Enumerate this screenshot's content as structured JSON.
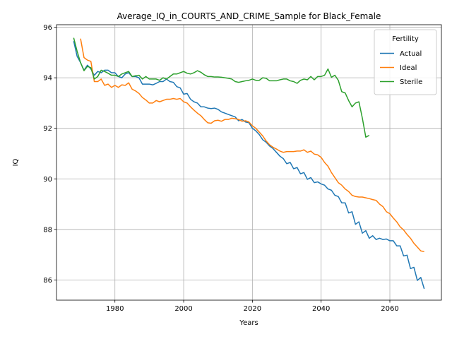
{
  "chart_data": {
    "type": "line",
    "title": "Average_IQ_in_COURTS_AND_CRIME_Sample for Black_Female",
    "xlabel": "Years",
    "ylabel": "IQ",
    "xlim": [
      1963,
      2075
    ],
    "ylim": [
      85.2,
      96.1
    ],
    "xticks": [
      1980,
      2000,
      2020,
      2040,
      2060
    ],
    "yticks": [
      86,
      88,
      90,
      92,
      94,
      96
    ],
    "grid": true,
    "legend": {
      "title": "Fertility",
      "position": "top-right"
    },
    "series": [
      {
        "name": "Actual",
        "color": "#1f77b4",
        "x": [
          1968,
          1969,
          1970,
          1971,
          1972,
          1973,
          1974,
          1975,
          1976,
          1977,
          1978,
          1979,
          1980,
          1981,
          1982,
          1983,
          1984,
          1985,
          1986,
          1987,
          1988,
          1989,
          1990,
          1991,
          1992,
          1993,
          1994,
          1995,
          1996,
          1997,
          1998,
          1999,
          2000,
          2001,
          2002,
          2003,
          2004,
          2005,
          2006,
          2007,
          2008,
          2009,
          2010,
          2011,
          2012,
          2013,
          2014,
          2015,
          2016,
          2017,
          2018,
          2019,
          2020,
          2021,
          2022,
          2023,
          2024,
          2025,
          2026,
          2027,
          2028,
          2029,
          2030,
          2031,
          2032,
          2033,
          2034,
          2035,
          2036,
          2037,
          2038,
          2039,
          2040,
          2041,
          2042,
          2043,
          2044,
          2045,
          2046,
          2047,
          2048,
          2049,
          2050,
          2051,
          2052,
          2053,
          2054,
          2055,
          2056,
          2057,
          2058,
          2059,
          2060,
          2061,
          2062,
          2063,
          2064,
          2065,
          2066,
          2067,
          2068,
          2069,
          2070
        ],
        "y": [
          95.45,
          94.85,
          94.6,
          94.3,
          94.5,
          94.35,
          94.1,
          94.25,
          94.2,
          94.3,
          94.3,
          94.2,
          94.2,
          94.05,
          94.0,
          94.15,
          94.2,
          94.05,
          94.05,
          94.0,
          93.75,
          93.75,
          93.75,
          93.72,
          93.78,
          93.85,
          93.85,
          93.95,
          93.85,
          93.82,
          93.65,
          93.6,
          93.35,
          93.38,
          93.15,
          93.05,
          93.0,
          92.85,
          92.85,
          92.8,
          92.78,
          92.8,
          92.75,
          92.65,
          92.6,
          92.55,
          92.5,
          92.45,
          92.3,
          92.35,
          92.25,
          92.22,
          92.0,
          91.9,
          91.75,
          91.55,
          91.45,
          91.3,
          91.2,
          91.05,
          90.9,
          90.8,
          90.6,
          90.65,
          90.4,
          90.45,
          90.2,
          90.25,
          89.98,
          90.05,
          89.85,
          89.88,
          89.8,
          89.75,
          89.6,
          89.55,
          89.35,
          89.3,
          89.05,
          89.05,
          88.65,
          88.7,
          88.2,
          88.3,
          87.85,
          87.95,
          87.65,
          87.75,
          87.6,
          87.65,
          87.6,
          87.62,
          87.55,
          87.55,
          87.35,
          87.35,
          86.95,
          86.98,
          86.45,
          86.5,
          85.98,
          86.1,
          85.65
        ]
      },
      {
        "name": "Ideal",
        "color": "#ff7f0e",
        "x": [
          1970,
          1971,
          1972,
          1973,
          1974,
          1975,
          1976,
          1977,
          1978,
          1979,
          1980,
          1981,
          1982,
          1983,
          1984,
          1985,
          1986,
          1987,
          1988,
          1989,
          1990,
          1991,
          1992,
          1993,
          1994,
          1995,
          1996,
          1997,
          1998,
          1999,
          2000,
          2001,
          2002,
          2003,
          2004,
          2005,
          2006,
          2007,
          2008,
          2009,
          2010,
          2011,
          2012,
          2013,
          2014,
          2015,
          2016,
          2017,
          2018,
          2019,
          2020,
          2021,
          2022,
          2023,
          2024,
          2025,
          2026,
          2027,
          2028,
          2029,
          2030,
          2031,
          2032,
          2033,
          2034,
          2035,
          2036,
          2037,
          2038,
          2039,
          2040,
          2041,
          2042,
          2043,
          2044,
          2045,
          2046,
          2047,
          2048,
          2049,
          2050,
          2051,
          2052,
          2053,
          2054,
          2055,
          2056,
          2057,
          2058,
          2059,
          2060,
          2061,
          2062,
          2063,
          2064,
          2065,
          2066,
          2067,
          2068,
          2069,
          2070
        ],
        "y": [
          95.55,
          94.8,
          94.7,
          94.65,
          93.85,
          93.85,
          93.95,
          93.7,
          93.75,
          93.62,
          93.7,
          93.62,
          93.72,
          93.7,
          93.8,
          93.55,
          93.48,
          93.38,
          93.22,
          93.12,
          93.0,
          93.0,
          93.1,
          93.05,
          93.1,
          93.15,
          93.15,
          93.18,
          93.15,
          93.18,
          93.05,
          93.0,
          92.85,
          92.72,
          92.6,
          92.5,
          92.35,
          92.22,
          92.2,
          92.3,
          92.32,
          92.28,
          92.35,
          92.35,
          92.4,
          92.38,
          92.35,
          92.28,
          92.3,
          92.25,
          92.1,
          92.0,
          91.85,
          91.7,
          91.5,
          91.35,
          91.25,
          91.18,
          91.1,
          91.05,
          91.08,
          91.08,
          91.08,
          91.1,
          91.1,
          91.15,
          91.05,
          91.1,
          90.98,
          90.95,
          90.85,
          90.65,
          90.5,
          90.25,
          90.05,
          89.85,
          89.75,
          89.6,
          89.5,
          89.35,
          89.3,
          89.28,
          89.28,
          89.25,
          89.22,
          89.18,
          89.15,
          89.0,
          88.9,
          88.7,
          88.62,
          88.45,
          88.3,
          88.1,
          87.98,
          87.8,
          87.65,
          87.45,
          87.3,
          87.15,
          87.12
        ]
      },
      {
        "name": "Sterile",
        "color": "#2ca02c",
        "x": [
          1968,
          1969,
          1970,
          1971,
          1972,
          1973,
          1974,
          1975,
          1976,
          1977,
          1978,
          1979,
          1980,
          1981,
          1982,
          1983,
          1984,
          1985,
          1986,
          1987,
          1988,
          1989,
          1990,
          1991,
          1992,
          1993,
          1994,
          1995,
          1996,
          1997,
          1998,
          1999,
          2000,
          2001,
          2002,
          2003,
          2004,
          2005,
          2006,
          2007,
          2008,
          2009,
          2010,
          2011,
          2012,
          2013,
          2014,
          2015,
          2016,
          2017,
          2018,
          2019,
          2020,
          2021,
          2022,
          2023,
          2024,
          2025,
          2026,
          2027,
          2028,
          2029,
          2030,
          2031,
          2032,
          2033,
          2034,
          2035,
          2036,
          2037,
          2038,
          2039,
          2040,
          2041,
          2042,
          2043,
          2044,
          2045,
          2046,
          2047,
          2048,
          2049,
          2050,
          2051,
          2052,
          2053,
          2054
        ],
        "y": [
          95.58,
          95.05,
          94.6,
          94.28,
          94.45,
          94.4,
          93.95,
          94.05,
          94.3,
          94.25,
          94.18,
          94.1,
          94.1,
          94.05,
          94.15,
          94.2,
          94.25,
          94.05,
          94.08,
          94.1,
          93.95,
          94.05,
          93.95,
          93.95,
          93.95,
          93.9,
          94.0,
          93.95,
          94.05,
          94.15,
          94.15,
          94.2,
          94.25,
          94.18,
          94.15,
          94.2,
          94.28,
          94.22,
          94.12,
          94.05,
          94.05,
          94.03,
          94.03,
          94.02,
          94.0,
          93.98,
          93.95,
          93.85,
          93.82,
          93.85,
          93.88,
          93.9,
          93.95,
          93.9,
          93.9,
          94.0,
          93.98,
          93.88,
          93.88,
          93.88,
          93.92,
          93.95,
          93.95,
          93.88,
          93.85,
          93.78,
          93.9,
          93.95,
          93.92,
          94.05,
          93.92,
          94.05,
          94.05,
          94.1,
          94.35,
          94.02,
          94.1,
          93.9,
          93.45,
          93.4,
          93.1,
          92.85,
          93.0,
          93.05,
          92.4,
          91.65,
          91.72
        ]
      }
    ]
  }
}
